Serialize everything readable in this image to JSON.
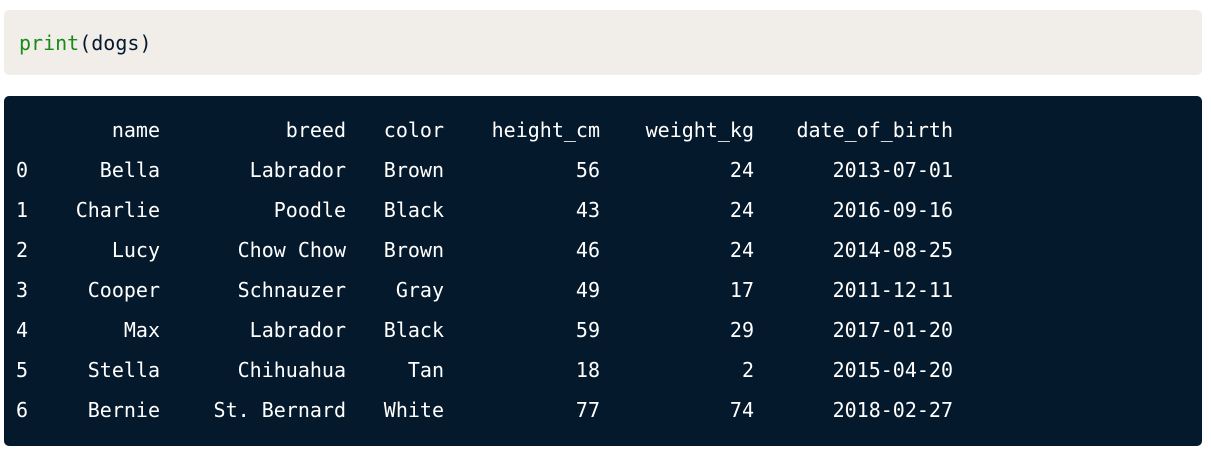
{
  "code": {
    "func": "print",
    "open_paren": "(",
    "arg": "dogs",
    "close_paren": ")"
  },
  "output": {
    "columns": [
      "name",
      "breed",
      "color",
      "height_cm",
      "weight_kg",
      "date_of_birth"
    ],
    "rows": [
      {
        "index": "0",
        "name": "Bella",
        "breed": "Labrador",
        "color": "Brown",
        "height_cm": "56",
        "weight_kg": "24",
        "date_of_birth": "2013-07-01"
      },
      {
        "index": "1",
        "name": "Charlie",
        "breed": "Poodle",
        "color": "Black",
        "height_cm": "43",
        "weight_kg": "24",
        "date_of_birth": "2016-09-16"
      },
      {
        "index": "2",
        "name": "Lucy",
        "breed": "Chow Chow",
        "color": "Brown",
        "height_cm": "46",
        "weight_kg": "24",
        "date_of_birth": "2014-08-25"
      },
      {
        "index": "3",
        "name": "Cooper",
        "breed": "Schnauzer",
        "color": "Gray",
        "height_cm": "49",
        "weight_kg": "17",
        "date_of_birth": "2011-12-11"
      },
      {
        "index": "4",
        "name": "Max",
        "breed": "Labrador",
        "color": "Black",
        "height_cm": "59",
        "weight_kg": "29",
        "date_of_birth": "2017-01-20"
      },
      {
        "index": "5",
        "name": "Stella",
        "breed": "Chihuahua",
        "color": "Tan",
        "height_cm": "18",
        "weight_kg": "2",
        "date_of_birth": "2015-04-20"
      },
      {
        "index": "6",
        "name": "Bernie",
        "breed": "St. Bernard",
        "color": "White",
        "height_cm": "77",
        "weight_kg": "74",
        "date_of_birth": "2018-02-27"
      }
    ]
  },
  "colors": {
    "code_bg": "#f1eee9",
    "output_bg": "#05192d",
    "function_green": "#1a8a16"
  }
}
